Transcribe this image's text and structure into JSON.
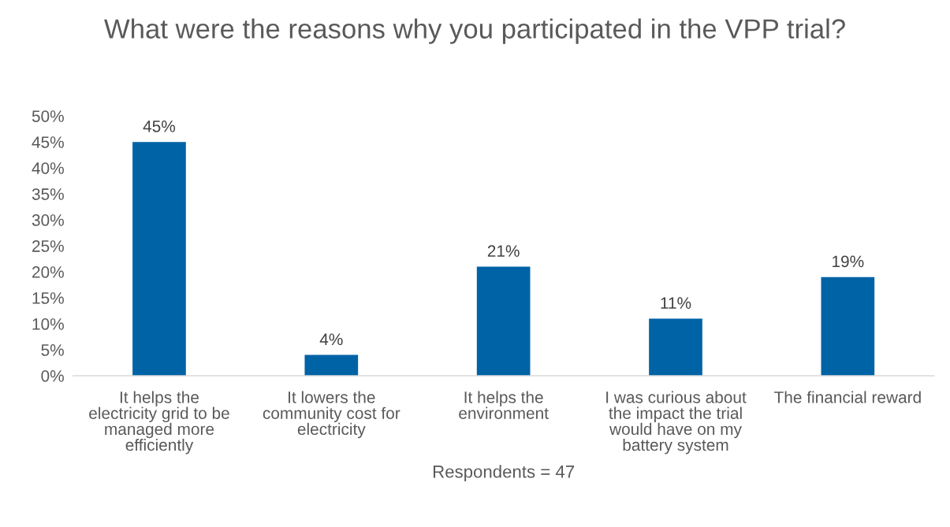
{
  "chart_data": {
    "type": "bar",
    "title": "What were the reasons why you participated in the VPP trial?",
    "xlabel": "Respondents = 47",
    "categories": [
      "It helps the\nelectricity grid to be\nmanaged more\nefficiently",
      "It lowers the\ncommunity cost for\nelectricity",
      "It helps the\nenvironment",
      "I was curious about\nthe impact the trial\nwould have on my\nbattery system",
      "The financial reward"
    ],
    "values": [
      45,
      4,
      21,
      11,
      19
    ],
    "color": "#0063a6",
    "value_labels": [
      "45%",
      "4%",
      "21%",
      "11%",
      "19%"
    ],
    "ylim": [
      0,
      50
    ],
    "yticks": [
      {
        "value": 0,
        "label": "0%"
      },
      {
        "value": 5,
        "label": "5%"
      },
      {
        "value": 10,
        "label": "10%"
      },
      {
        "value": 15,
        "label": "15%"
      },
      {
        "value": 20,
        "label": "20%"
      },
      {
        "value": 25,
        "label": "25%"
      },
      {
        "value": 30,
        "label": "30%"
      },
      {
        "value": 35,
        "label": "35%"
      },
      {
        "value": 40,
        "label": "40%"
      },
      {
        "value": 45,
        "label": "45%"
      },
      {
        "value": 50,
        "label": "50%"
      }
    ],
    "grid": false,
    "legend": false
  }
}
